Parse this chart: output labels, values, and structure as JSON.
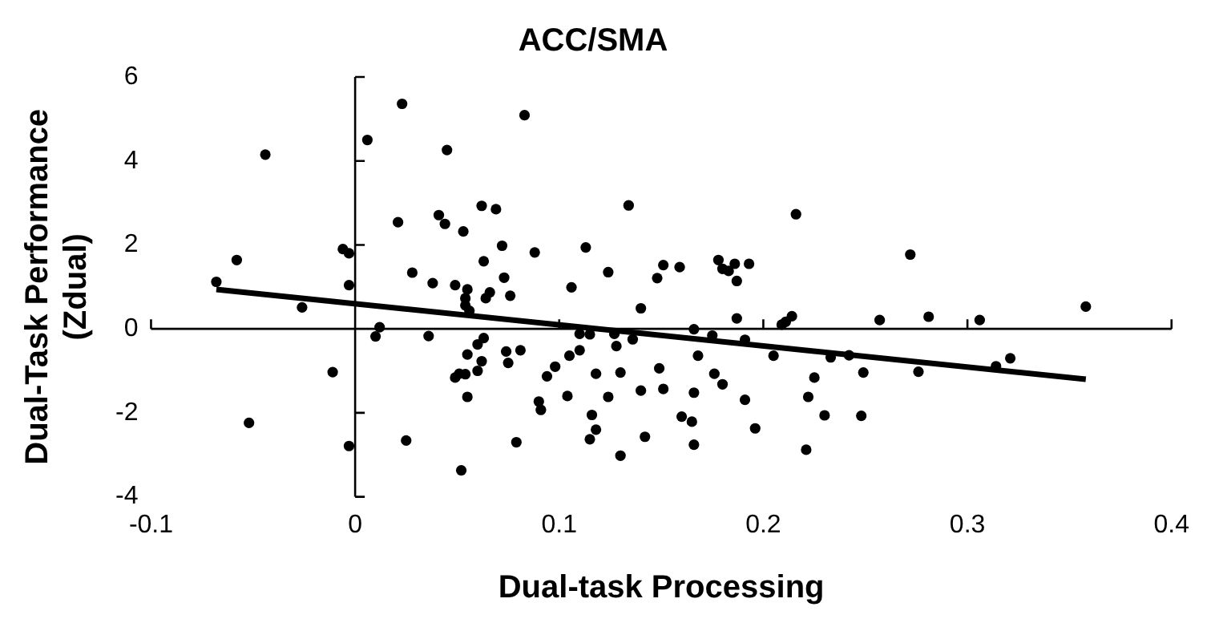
{
  "chart_data": {
    "type": "scatter",
    "title": "ACC/SMA",
    "xlabel": "Dual-task Processing",
    "ylabel": "Dual-Task Performance\n(Zdual)",
    "xlim": [
      -0.1,
      0.4
    ],
    "xticks": [
      -0.1,
      0,
      0.1,
      0.2,
      0.3,
      0.4
    ],
    "ylim": [
      -4,
      6
    ],
    "yticks": [
      -4,
      -2,
      0,
      2,
      4,
      6
    ],
    "legend": false,
    "marker": "circle",
    "series": [
      {
        "type": "scatter",
        "color": "#000000",
        "x": [
          -0.068,
          -0.058,
          -0.044,
          -0.052,
          -0.026,
          -0.011,
          -0.006,
          -0.003,
          -0.003,
          -0.003,
          0.006,
          0.023,
          0.021,
          0.01,
          0.012,
          0.028,
          0.036,
          0.038,
          0.025,
          0.045,
          0.041,
          0.044,
          0.053,
          0.062,
          0.069,
          0.072,
          0.063,
          0.073,
          0.049,
          0.055,
          0.054,
          0.054,
          0.056,
          0.064,
          0.066,
          0.076,
          0.049,
          0.051,
          0.054,
          0.06,
          0.055,
          0.06,
          0.063,
          0.062,
          0.074,
          0.075,
          0.081,
          0.055,
          0.052,
          0.079,
          0.083,
          0.088,
          0.113,
          0.106,
          0.134,
          0.124,
          0.151,
          0.159,
          0.148,
          0.14,
          0.178,
          0.18,
          0.183,
          0.186,
          0.193,
          0.187,
          0.216,
          0.187,
          0.209,
          0.211,
          0.214,
          0.098,
          0.094,
          0.105,
          0.11,
          0.11,
          0.115,
          0.127,
          0.128,
          0.136,
          0.166,
          0.175,
          0.168,
          0.191,
          0.205,
          0.09,
          0.091,
          0.104,
          0.118,
          0.13,
          0.124,
          0.149,
          0.14,
          0.151,
          0.166,
          0.176,
          0.18,
          0.191,
          0.116,
          0.118,
          0.115,
          0.13,
          0.142,
          0.16,
          0.165,
          0.166,
          0.196,
          0.225,
          0.222,
          0.221,
          0.23,
          0.233,
          0.242,
          0.257,
          0.272,
          0.281,
          0.306,
          0.358,
          0.249,
          0.248,
          0.276,
          0.314,
          0.321
        ],
        "values": [
          1.12,
          1.64,
          4.15,
          -2.24,
          0.51,
          -1.03,
          1.9,
          1.8,
          1.04,
          -2.79,
          4.5,
          5.36,
          2.54,
          -0.18,
          0.04,
          1.34,
          -0.17,
          1.09,
          -2.66,
          4.26,
          2.71,
          2.5,
          2.32,
          2.93,
          2.85,
          1.98,
          1.61,
          1.22,
          1.04,
          0.94,
          0.73,
          0.56,
          0.43,
          0.73,
          0.87,
          0.79,
          -1.16,
          -1.07,
          -1.08,
          -1.0,
          -0.61,
          -0.37,
          -0.22,
          -0.77,
          -0.54,
          -0.81,
          -0.51,
          -1.62,
          -3.37,
          -2.7,
          5.09,
          1.82,
          1.94,
          0.99,
          2.94,
          1.35,
          1.52,
          1.47,
          1.21,
          0.49,
          1.64,
          1.43,
          1.38,
          1.55,
          1.55,
          1.14,
          2.73,
          0.25,
          0.1,
          0.17,
          0.3,
          -0.9,
          -1.13,
          -0.64,
          -0.51,
          -0.12,
          -0.13,
          -0.12,
          -0.41,
          -0.25,
          -0.01,
          -0.16,
          -0.64,
          -0.26,
          -0.64,
          -1.73,
          -1.93,
          -1.6,
          -1.07,
          -1.04,
          -1.62,
          -0.94,
          -1.47,
          -1.43,
          -1.52,
          -1.07,
          -1.32,
          -1.69,
          -2.05,
          -2.4,
          -2.63,
          -3.02,
          -2.57,
          -2.09,
          -2.21,
          -2.76,
          -2.37,
          -1.16,
          -1.62,
          -2.88,
          -2.06,
          -0.68,
          -0.63,
          0.21,
          1.77,
          0.29,
          0.21,
          0.53,
          -1.04,
          -2.07,
          -1.02,
          -0.89,
          -0.7
        ]
      },
      {
        "type": "line",
        "color": "#000000",
        "x": [
          -0.068,
          0.358
        ],
        "values": [
          0.94,
          -1.2
        ],
        "marker": "none",
        "line_style": "solid"
      }
    ]
  }
}
